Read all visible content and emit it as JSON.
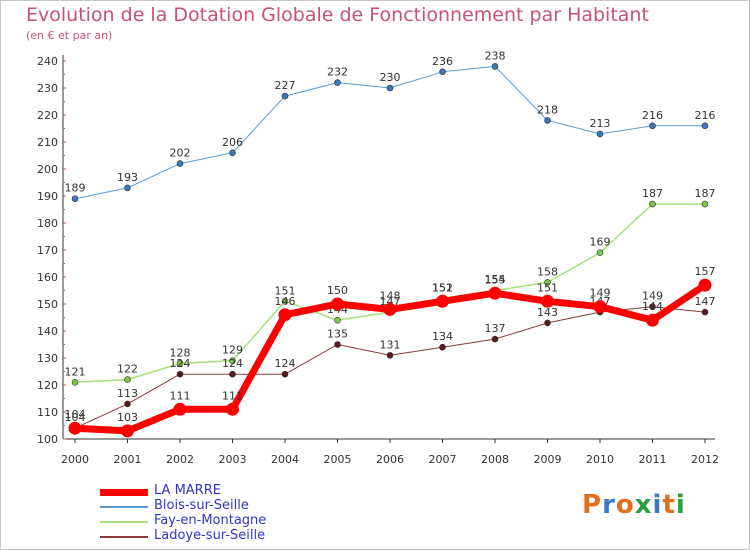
{
  "title": "Evolution de la Dotation Globale de Fonctionnement par Habitant",
  "subtitle": "(en € et par an)",
  "logo": {
    "text": "Proxiti",
    "colors": [
      "#e07020",
      "#3a78c8",
      "#e07020",
      "#2aa040",
      "#3a78c8",
      "#e07020",
      "#2aa040"
    ]
  },
  "chart_data": {
    "type": "line",
    "title": "Evolution de la Dotation Globale de Fonctionnement par Habitant",
    "subtitle": "(en € et par an)",
    "x": [
      "2000",
      "2001",
      "2002",
      "2003",
      "2004",
      "2005",
      "2006",
      "2007",
      "2008",
      "2009",
      "2010",
      "2011",
      "2012"
    ],
    "ylim": [
      100,
      240
    ],
    "yticks": [
      100,
      110,
      120,
      130,
      140,
      150,
      160,
      170,
      180,
      190,
      200,
      210,
      220,
      230,
      240
    ],
    "grid": false,
    "legend_position": "bottom-left",
    "series": [
      {
        "name": "Blois-sur-Seille",
        "color": "#5b9bd5",
        "marker": "#3a78b8",
        "width": 1,
        "values": [
          189,
          193,
          202,
          206,
          227,
          232,
          230,
          236,
          238,
          218,
          213,
          216,
          216
        ]
      },
      {
        "name": "Fay-en-Montagne",
        "color": "#a8e07a",
        "marker": "#7cc84a",
        "width": 1.5,
        "values": [
          121,
          122,
          128,
          129,
          151,
          144,
          147,
          152,
          155,
          158,
          169,
          187,
          187
        ]
      },
      {
        "name": "Ladoye-sur-Seille",
        "color": "#8b3a3a",
        "marker": "#5a1a1a",
        "width": 1,
        "values": [
          104,
          113,
          124,
          124,
          124,
          135,
          131,
          134,
          137,
          143,
          147,
          149,
          147
        ]
      },
      {
        "name": "LA MARRE",
        "color": "#ff0000",
        "marker": "#ff0000",
        "width": 7,
        "values": [
          104,
          103,
          111,
          111,
          146,
          150,
          148,
          151,
          154,
          151,
          149,
          144,
          157
        ]
      }
    ]
  },
  "legend": [
    {
      "label": "LA MARRE",
      "color": "#ff0000",
      "thickness": 7
    },
    {
      "label": "Blois-sur-Seille",
      "color": "#5b9bd5",
      "thickness": 1.5
    },
    {
      "label": "Fay-en-Montagne",
      "color": "#a8e07a",
      "thickness": 1.5
    },
    {
      "label": "Ladoye-sur-Seille",
      "color": "#8b3a3a",
      "thickness": 1.5
    }
  ]
}
